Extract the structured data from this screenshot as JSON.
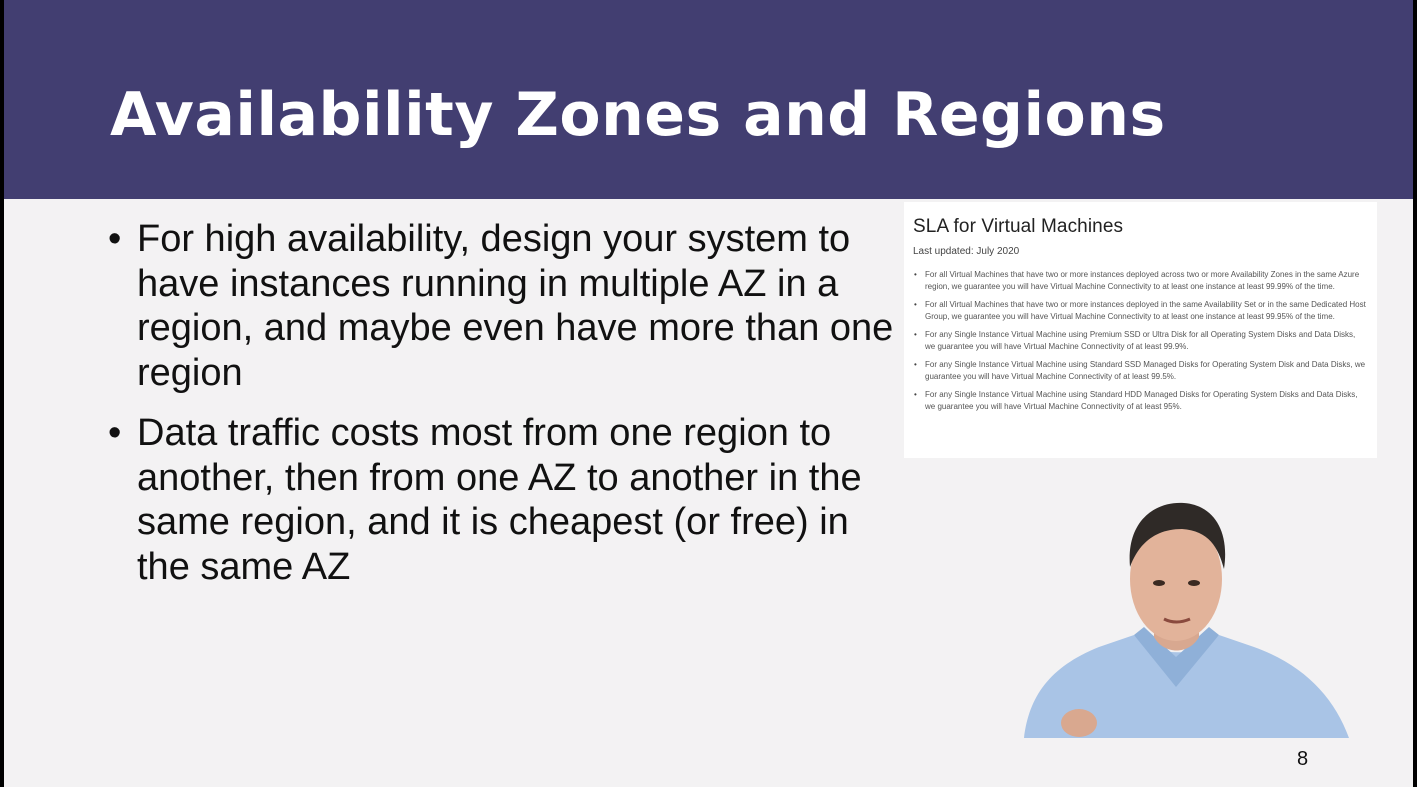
{
  "slide": {
    "title": "Availability Zones and Regions",
    "bullets": [
      {
        "marker": "•",
        "text": "For high availability, design your system to have instances running in multiple AZ in a region, and maybe even have more than one region"
      },
      {
        "marker": "•",
        "text": "Data traffic costs most from one region to another, then from one AZ to another in the same region, and it is cheapest (or free) in the same AZ"
      }
    ],
    "page_number": "8"
  },
  "sla_screenshot": {
    "title": "SLA for Virtual Machines",
    "last_updated": "Last updated: July 2020",
    "items": [
      "For all Virtual Machines that have two or more instances deployed across two or more Availability Zones in the same Azure region, we guarantee you will have Virtual Machine Connectivity to at least one instance at least 99.99% of the time.",
      "For all Virtual Machines that have two or more instances deployed in the same Availability Set or in the same Dedicated Host Group, we guarantee you will have Virtual Machine Connectivity to at least one instance at least 99.95% of the time.",
      "For any Single Instance Virtual Machine using Premium SSD or Ultra Disk for all Operating System Disks and Data Disks, we guarantee you will have Virtual Machine Connectivity of at least 99.9%.",
      "For any Single Instance Virtual Machine using Standard SSD Managed Disks for Operating System Disk and Data Disks, we guarantee you will have Virtual Machine Connectivity of at least 99.5%.",
      "For any Single Instance Virtual Machine using Standard HDD Managed Disks for Operating System Disks and Data Disks, we guarantee you will have Virtual Machine Connectivity of at least 95%."
    ]
  },
  "colors": {
    "title_bar": "#423e71",
    "slide_background": "#f3f2f3",
    "title_text": "#ffffff",
    "body_text": "#111111",
    "shirt": "#a9c4e6"
  }
}
